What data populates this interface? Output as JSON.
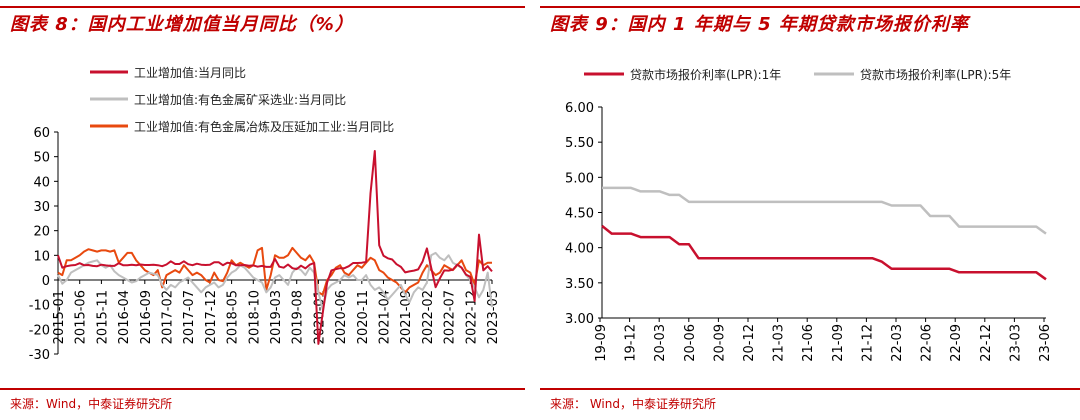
{
  "chart_data": [
    {
      "type": "line",
      "title": "图表 8：国内工业增加值当月同比（%）",
      "source": "来源：Wind，中泰证券研究所",
      "ylim": [
        -30,
        60
      ],
      "yticks": [
        -30,
        -20,
        -10,
        0,
        10,
        20,
        30,
        40,
        50,
        60
      ],
      "xtick_labels": [
        "2015-01",
        "2015-06",
        "2015-11",
        "2016-04",
        "2016-09",
        "2017-02",
        "2017-07",
        "2017-12",
        "2018-05",
        "2018-10",
        "2019-03",
        "2019-08",
        "2020-01",
        "2020-06",
        "2020-11",
        "2021-04",
        "2021-09",
        "2022-02",
        "2022-07",
        "2022-12",
        "2023-05"
      ],
      "x_start": "2015-01",
      "legend_position": "top-left",
      "grid": false,
      "colors": [
        "#c8102e",
        "#bfbfbf",
        "#e8490f"
      ],
      "series": [
        {
          "name": "工业增加值:当月同比",
          "values": [
            10,
            5,
            5.6,
            5.9,
            6.1,
            6.8,
            6,
            6.1,
            5.7,
            5.6,
            6.2,
            5.9,
            5.7,
            5.7,
            6.8,
            6,
            6,
            6.2,
            6,
            6.3,
            6.1,
            6.1,
            6.2,
            6,
            5.6,
            6.3,
            7.6,
            6.5,
            6.5,
            7.6,
            6.4,
            6,
            6.6,
            6.2,
            6.1,
            6.2,
            7.2,
            7.2,
            6,
            7,
            6.8,
            6,
            6,
            6.1,
            5.8,
            5.9,
            5.4,
            5.7,
            5.3,
            5.3,
            8.5,
            5.4,
            5,
            6.3,
            4.8,
            4.4,
            5.8,
            4.7,
            6.2,
            6.9,
            -25.9,
            -13.5,
            -1.1,
            3.9,
            4.4,
            4.8,
            4.8,
            5.6,
            6.9,
            6.9,
            7,
            7.3,
            35.1,
            52.3,
            14.1,
            9.8,
            8.8,
            8.3,
            6.4,
            5.3,
            3.1,
            3.5,
            3.8,
            4.3,
            7.5,
            12.8,
            5,
            -2.9,
            0.7,
            3.9,
            3.8,
            4.2,
            6.3,
            5,
            2.2,
            1.3,
            -8.5,
            18.4,
            3.9,
            5.6,
            3.5
          ]
        },
        {
          "name": "工业增加值:有色金属矿采选业:当月同比",
          "values": [
            2,
            -1.5,
            0,
            3,
            4,
            5,
            6,
            7,
            7.5,
            8,
            6,
            5,
            6,
            3.5,
            2,
            1,
            0,
            -1,
            -0.5,
            1,
            2,
            3,
            2.5,
            2,
            -2,
            -4,
            -2,
            -3,
            -1,
            0,
            1,
            -1,
            -3,
            -5,
            -3,
            -2,
            -1,
            -3,
            -2,
            1,
            3,
            4,
            6,
            5,
            3,
            1,
            0,
            -1,
            -5,
            -3,
            1,
            2,
            0,
            -2,
            3,
            5,
            4,
            2,
            5,
            3,
            -5,
            -12,
            -4,
            -2,
            -1,
            0,
            2,
            1,
            2,
            0,
            0,
            2,
            -2,
            -4,
            -3,
            -5,
            -8,
            -6,
            -4,
            -2,
            -6,
            -9,
            -5,
            -3,
            -4,
            -1,
            10,
            11,
            9,
            8,
            10,
            7,
            6,
            5,
            2,
            0,
            -3,
            -7,
            -4,
            3,
            -11
          ]
        },
        {
          "name": "工业增加值:有色金属冶炼及压延加工业:当月同比",
          "values": [
            3,
            2,
            8,
            8,
            9,
            10,
            11.5,
            12.5,
            12,
            11.5,
            12,
            12,
            11.5,
            12,
            7,
            9,
            11,
            11,
            8,
            6,
            4,
            3,
            2,
            4,
            -3,
            2,
            3,
            4,
            3,
            6,
            4,
            2,
            3,
            2,
            0,
            -1,
            3,
            0,
            -0.5,
            3,
            8,
            6,
            7,
            6,
            5,
            6,
            12,
            13,
            -4,
            2,
            10,
            9,
            9,
            10,
            13,
            11,
            9,
            8,
            10,
            7,
            -5,
            -6,
            0,
            2,
            5,
            6,
            3,
            2,
            4,
            6,
            5,
            7,
            9,
            8,
            4,
            3,
            1,
            0,
            -1,
            -3,
            -5,
            -3,
            -2,
            -1,
            3,
            6,
            4,
            2,
            3,
            6,
            5,
            4,
            6,
            8,
            4,
            3,
            -2,
            8,
            6,
            7,
            7
          ]
        }
      ]
    },
    {
      "type": "line",
      "title": "图表 9：国内 1 年期与 5 年期贷款市场报价利率",
      "source": "来源：  Wind，中泰证券研究所",
      "ylim": [
        3.0,
        6.0
      ],
      "yticks": [
        "3.00",
        "3.50",
        "4.00",
        "4.50",
        "5.00",
        "5.50",
        "6.00"
      ],
      "xtick_labels": [
        "19-09",
        "19-12",
        "20-03",
        "20-06",
        "20-09",
        "20-12",
        "21-03",
        "21-06",
        "21-09",
        "21-12",
        "22-03",
        "22-06",
        "22-09",
        "22-12",
        "23-03",
        "23-06"
      ],
      "x_start": "2019-08",
      "legend_position": "top",
      "grid": false,
      "colors": [
        "#c8102e",
        "#bfbfbf"
      ],
      "series": [
        {
          "name": "贷款市场报价利率(LPR):1年",
          "values": [
            4.31,
            4.2,
            4.2,
            4.2,
            4.15,
            4.15,
            4.15,
            4.15,
            4.05,
            4.05,
            3.85,
            3.85,
            3.85,
            3.85,
            3.85,
            3.85,
            3.85,
            3.85,
            3.85,
            3.85,
            3.85,
            3.85,
            3.85,
            3.85,
            3.85,
            3.85,
            3.85,
            3.85,
            3.85,
            3.8,
            3.7,
            3.7,
            3.7,
            3.7,
            3.7,
            3.7,
            3.7,
            3.65,
            3.65,
            3.65,
            3.65,
            3.65,
            3.65,
            3.65,
            3.65,
            3.65,
            3.55
          ]
        },
        {
          "name": "贷款市场报价利率(LPR):5年",
          "values": [
            4.85,
            4.85,
            4.85,
            4.85,
            4.8,
            4.8,
            4.8,
            4.75,
            4.75,
            4.65,
            4.65,
            4.65,
            4.65,
            4.65,
            4.65,
            4.65,
            4.65,
            4.65,
            4.65,
            4.65,
            4.65,
            4.65,
            4.65,
            4.65,
            4.65,
            4.65,
            4.65,
            4.65,
            4.65,
            4.65,
            4.6,
            4.6,
            4.6,
            4.6,
            4.45,
            4.45,
            4.45,
            4.3,
            4.3,
            4.3,
            4.3,
            4.3,
            4.3,
            4.3,
            4.3,
            4.3,
            4.2
          ]
        }
      ]
    }
  ]
}
